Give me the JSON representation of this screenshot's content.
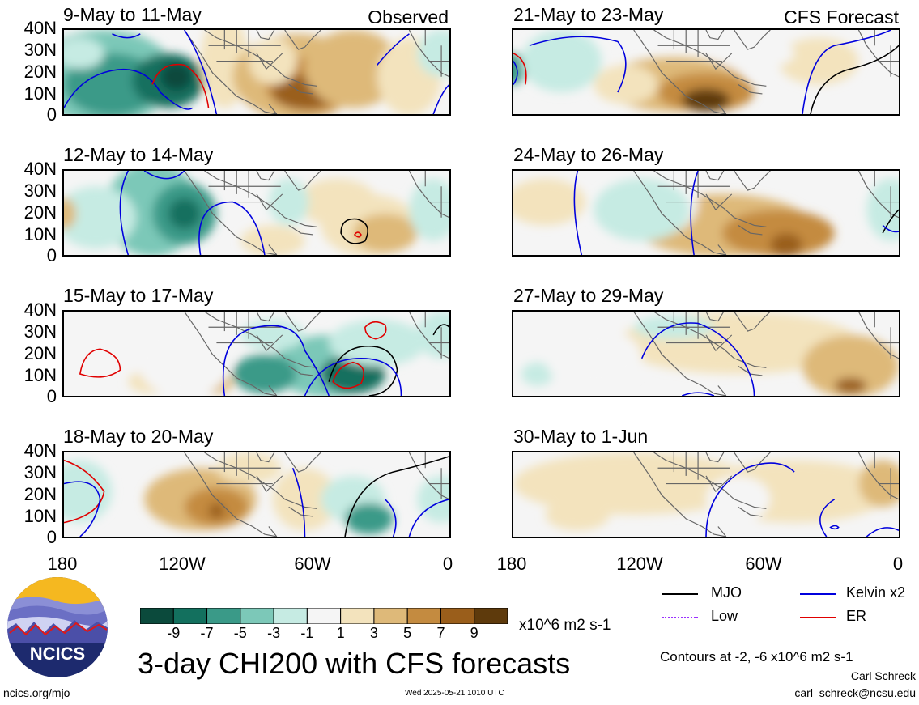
{
  "panels": [
    {
      "title": "9-May to 11-May",
      "tag": "Observed",
      "kind": "obs1"
    },
    {
      "title": "12-May to 14-May",
      "tag": "",
      "kind": "obs2"
    },
    {
      "title": "15-May to 17-May",
      "tag": "",
      "kind": "obs3"
    },
    {
      "title": "18-May to 20-May",
      "tag": "",
      "kind": "obs4"
    },
    {
      "title": "21-May to 23-May",
      "tag": "CFS Forecast",
      "kind": "fc1"
    },
    {
      "title": "24-May to 26-May",
      "tag": "",
      "kind": "fc2"
    },
    {
      "title": "27-May to 29-May",
      "tag": "",
      "kind": "fc3"
    },
    {
      "title": "30-May to 1-Jun",
      "tag": "",
      "kind": "fc4"
    }
  ],
  "axes": {
    "y_ticks": [
      "40N",
      "30N",
      "20N",
      "10N",
      "0"
    ],
    "x_ticks": [
      "180",
      "120W",
      "60W",
      "0"
    ]
  },
  "colorbar": {
    "labels": [
      "-9",
      "-7",
      "-5",
      "-3",
      "-1",
      "1",
      "3",
      "5",
      "7",
      "9"
    ],
    "colors": [
      "#0b4a3c",
      "#13705e",
      "#3a9a88",
      "#7cc8b8",
      "#c6ebe3",
      "#f5f5f5",
      "#f3e3bd",
      "#deb979",
      "#c48b40",
      "#9a5e1b",
      "#5e3a0c"
    ],
    "unit": "x10^6 m2 s-1"
  },
  "legend": [
    {
      "label": "MJO",
      "color": "#000000"
    },
    {
      "label": "Kelvin x2",
      "color": "#0000dd"
    },
    {
      "label": "Low",
      "color": "#9b30ff"
    },
    {
      "label": "ER",
      "color": "#e00000"
    }
  ],
  "footer": {
    "main_title": "3-day CHI200 with CFS forecasts",
    "contours_note": "Contours at -2, -6 x10^6 m2 s-1",
    "author": "Carl Schreck",
    "email": "carl_schreck@ncsu.edu",
    "url": "ncics.org/mjo",
    "timestamp": "Wed 2025-05-21 1010 UTC",
    "logo_text": "NCICS"
  }
}
